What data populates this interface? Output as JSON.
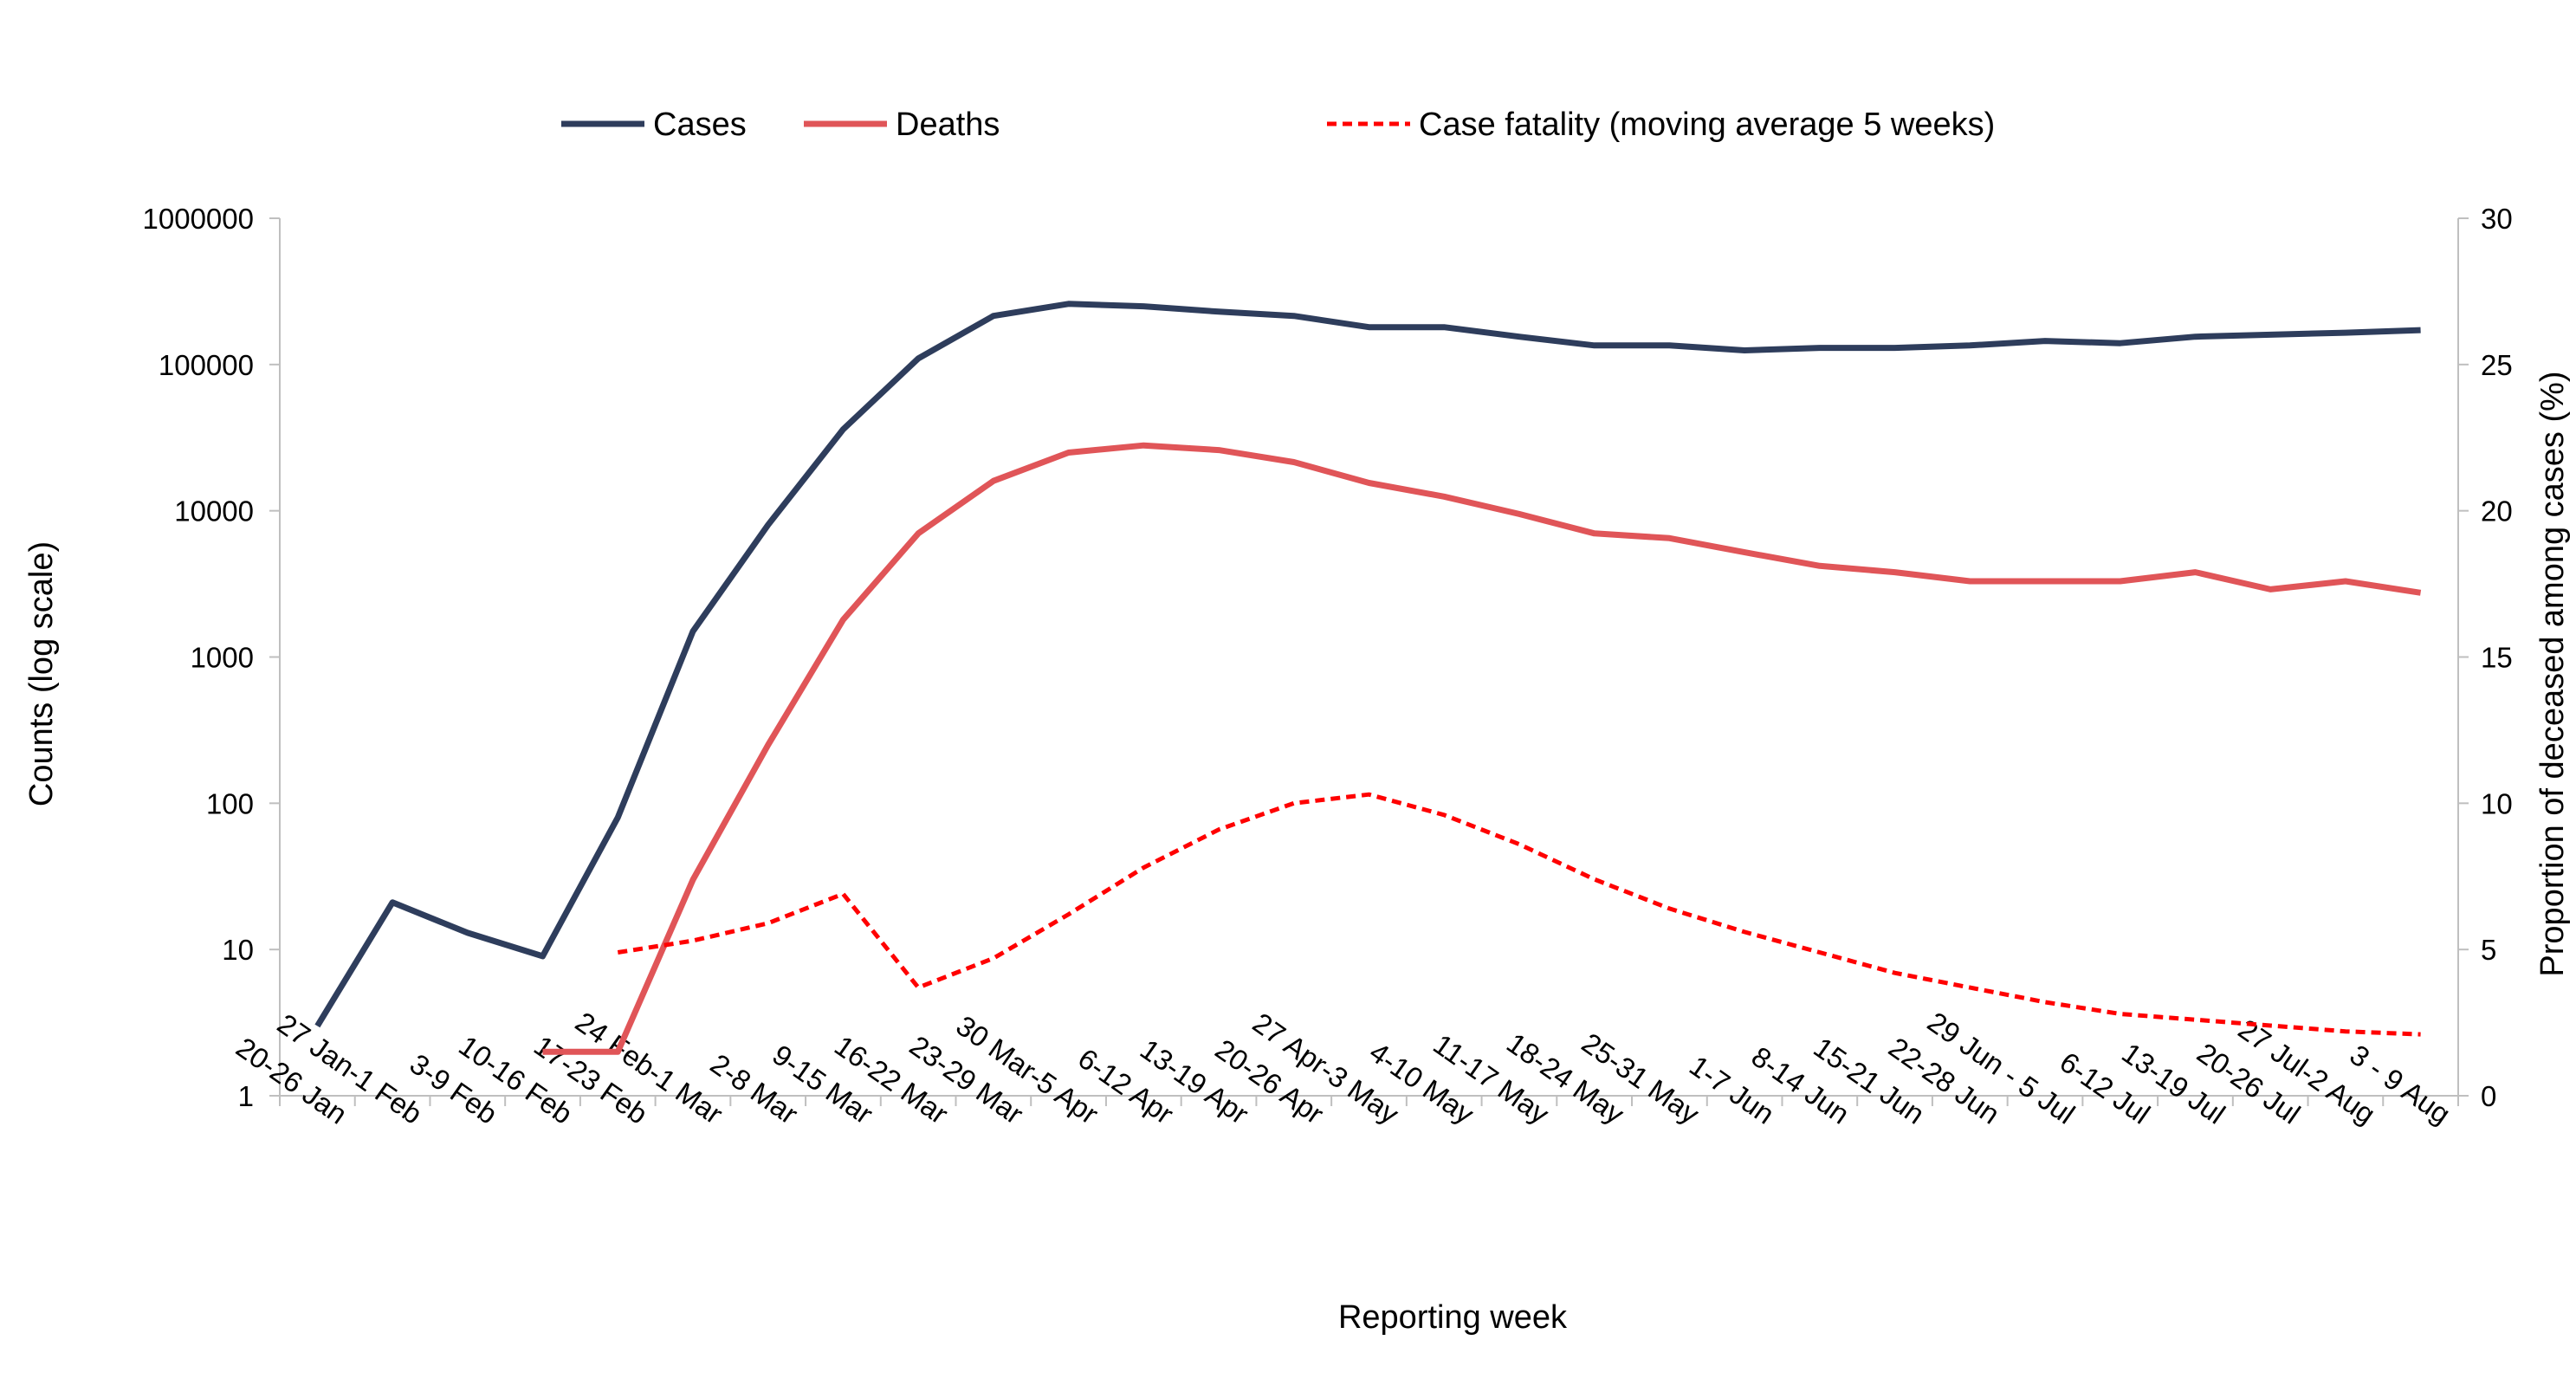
{
  "chart_data": {
    "type": "line",
    "title": "",
    "xlabel": "Reporting week",
    "ylabel": "Counts (log scale)",
    "y2label": "Proportion  of deceased among cases (%)",
    "yscale": "log",
    "ylim": [
      1,
      1000000
    ],
    "y_ticks": [
      "1",
      "10",
      "100",
      "1000",
      "10000",
      "100000",
      "1000000"
    ],
    "y2lim": [
      0,
      30
    ],
    "y2_ticks": [
      "0",
      "5",
      "10",
      "15",
      "20",
      "25",
      "30"
    ],
    "legend_position": "top",
    "grid": false,
    "categories": [
      "20-26 Jan",
      "27 Jan-1 Feb",
      "3-9 Feb",
      "10-16 Feb",
      "17-23 Feb",
      "24 Feb-1 Mar",
      "2-8 Mar",
      "9-15 Mar",
      "16-22 Mar",
      "23-29 Mar",
      "30 Mar-5 Apr",
      "6-12 Apr",
      "13-19 Apr",
      "20-26 Apr",
      "27 Apr-3 May",
      "4-10 May",
      "11-17 May",
      "18-24 May",
      "25-31 May",
      "1-7 Jun",
      "8-14 Jun",
      "15-21 Jun",
      "22-28 Jun",
      "29 Jun - 5 Jul",
      "6-12 Jul",
      "13-19 Jul",
      "20-26 Jul",
      "27 Jul-2 Aug",
      "3 - 9 Aug"
    ],
    "series": [
      {
        "name": "Cases",
        "axis": "left",
        "color": "#2e3d5c",
        "style": "solid",
        "values": [
          3,
          21,
          13,
          9,
          80,
          1500,
          8000,
          36000,
          110000,
          215000,
          260000,
          250000,
          230000,
          215000,
          180000,
          180000,
          155000,
          135000,
          135000,
          125000,
          130000,
          130000,
          135000,
          145000,
          140000,
          155000,
          160000,
          165000,
          172000
        ]
      },
      {
        "name": "Deaths",
        "axis": "left",
        "color": "#e05558",
        "style": "solid",
        "values": [
          null,
          null,
          null,
          2,
          2,
          30,
          250,
          1800,
          7000,
          16000,
          25000,
          28000,
          26000,
          21500,
          15500,
          12500,
          9500,
          7000,
          6500,
          5200,
          4200,
          3800,
          3300,
          3300,
          3300,
          3800,
          2900,
          3300,
          2750
        ]
      },
      {
        "name": "Case fatality (moving average 5 weeks)",
        "axis": "right",
        "color": "#ff0000",
        "style": "dashed",
        "values": [
          null,
          null,
          null,
          null,
          4.9,
          5.3,
          5.9,
          6.9,
          3.7,
          4.7,
          6.2,
          7.8,
          9.1,
          10.0,
          10.3,
          9.6,
          8.6,
          7.4,
          6.4,
          5.6,
          4.9,
          4.2,
          3.7,
          3.2,
          2.8,
          2.6,
          2.4,
          2.2,
          2.1
        ]
      }
    ]
  }
}
